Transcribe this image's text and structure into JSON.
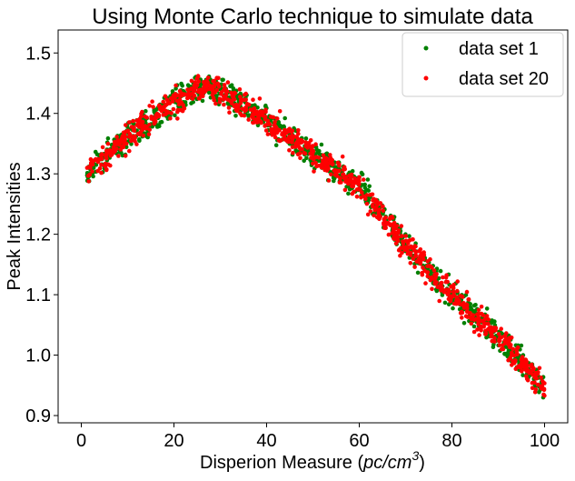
{
  "chart_data": {
    "type": "scatter",
    "title": "Using Monte Carlo technique to simulate data",
    "xlabel": "Disperion Measure (pc/cm³)",
    "xlabel_plain": "Disperion Measure (",
    "xlabel_math": "pc/cm",
    "xlabel_sup": "3",
    "xlabel_close": ")",
    "ylabel": "Peak Intensities",
    "xlim": [
      -5,
      105
    ],
    "ylim": [
      0.888,
      1.538
    ],
    "xticks": [
      0,
      20,
      40,
      60,
      80,
      100
    ],
    "xtick_labels": [
      "0",
      "20",
      "40",
      "60",
      "80",
      "100"
    ],
    "yticks": [
      0.9,
      1.0,
      1.1,
      1.2,
      1.3,
      1.4,
      1.5
    ],
    "ytick_labels": [
      "0.9",
      "1.0",
      "1.1",
      "1.2",
      "1.3",
      "1.4",
      "1.5"
    ],
    "grid": false,
    "legend_position": "top-right",
    "points_per_series": 1000,
    "series": [
      {
        "name": "data set 1",
        "color": "#008000",
        "x_range": [
          1,
          100
        ],
        "trend": [
          [
            1,
            1.3
          ],
          [
            10,
            1.36
          ],
          [
            20,
            1.42
          ],
          [
            27,
            1.445
          ],
          [
            35,
            1.415
          ],
          [
            45,
            1.36
          ],
          [
            60,
            1.28
          ],
          [
            70,
            1.18
          ],
          [
            80,
            1.1
          ],
          [
            90,
            1.03
          ],
          [
            100,
            0.945
          ]
        ],
        "noise": 0.022
      },
      {
        "name": "data set 20",
        "color": "#ff0000",
        "x_range": [
          1,
          100
        ],
        "trend": [
          [
            1,
            1.3
          ],
          [
            10,
            1.36
          ],
          [
            20,
            1.42
          ],
          [
            27,
            1.445
          ],
          [
            35,
            1.415
          ],
          [
            45,
            1.36
          ],
          [
            60,
            1.28
          ],
          [
            70,
            1.18
          ],
          [
            80,
            1.1
          ],
          [
            90,
            1.03
          ],
          [
            100,
            0.945
          ]
        ],
        "noise": 0.022
      }
    ]
  }
}
